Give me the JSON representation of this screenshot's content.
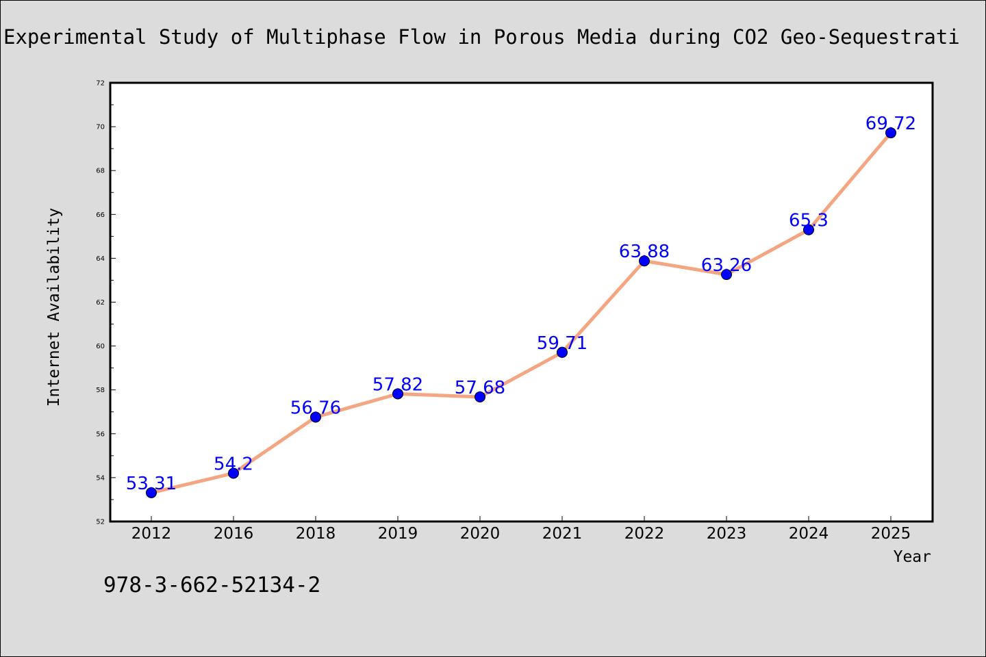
{
  "colors": {
    "background": "#dcdcdc",
    "plot_background": "#ffffff",
    "line": "#f4a582",
    "marker": "#0000ff",
    "data_label": "#0000ff"
  },
  "footnote": "978-3-662-52134-2",
  "chart_data": {
    "type": "line",
    "title": "Experimental Study of Multiphase Flow in Porous Media during CO2 Geo-Sequestrati",
    "xlabel": "Year",
    "ylabel": "Internet Availability",
    "categories": [
      "2012",
      "2016",
      "2018",
      "2019",
      "2020",
      "2021",
      "2022",
      "2023",
      "2024",
      "2025"
    ],
    "values": [
      53.31,
      54.2,
      56.76,
      57.82,
      57.68,
      59.71,
      63.88,
      63.26,
      65.3,
      69.72
    ],
    "data_labels": [
      "53.31",
      "54.2",
      "56.76",
      "57.82",
      "57.68",
      "59.71",
      "63.88",
      "63.26",
      "65.3",
      "69.72"
    ],
    "ylim": [
      52,
      72
    ],
    "yticks": [
      52,
      54,
      56,
      58,
      60,
      62,
      64,
      66,
      68,
      70,
      72
    ],
    "grid": false,
    "legend": "none"
  }
}
